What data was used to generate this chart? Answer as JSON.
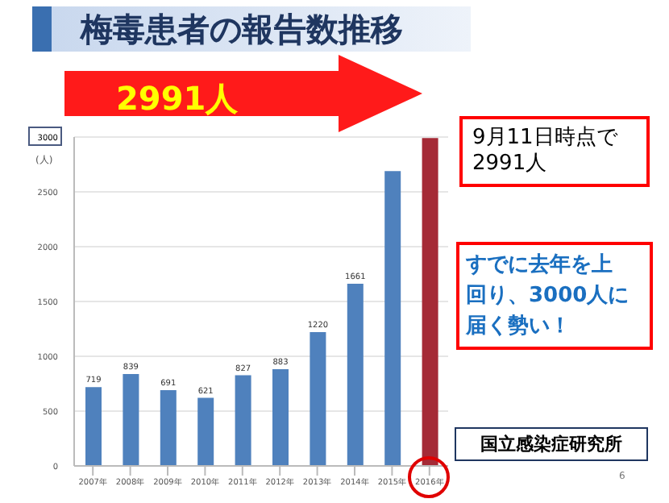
{
  "chart_data": {
    "type": "bar",
    "title": "梅毒患者の報告数推移",
    "ylabel": "(人)",
    "categories": [
      "2007年",
      "2008年",
      "2009年",
      "2010年",
      "2011年",
      "2012年",
      "2013年",
      "2014年",
      "2015年",
      "2016年"
    ],
    "values": [
      719,
      839,
      691,
      621,
      827,
      883,
      1220,
      1661,
      2690,
      2991
    ],
    "colors": [
      "#4f81bd",
      "#4f81bd",
      "#4f81bd",
      "#4f81bd",
      "#4f81bd",
      "#4f81bd",
      "#4f81bd",
      "#4f81bd",
      "#4f81bd",
      "#a52a36"
    ],
    "value_labels": [
      "719",
      "839",
      "691",
      "621",
      "827",
      "883",
      "1220",
      "1661",
      null,
      null
    ],
    "ylim": [
      0,
      3000
    ],
    "yticks": [
      0,
      500,
      1000,
      1500,
      2000,
      2500,
      3000
    ],
    "grid": "y",
    "annotations": [
      "2991人",
      "9月11日時点で2991人",
      "すでに去年を上回り、3000人に届く勢い！",
      "国立感染症研究所",
      "6"
    ]
  }
}
